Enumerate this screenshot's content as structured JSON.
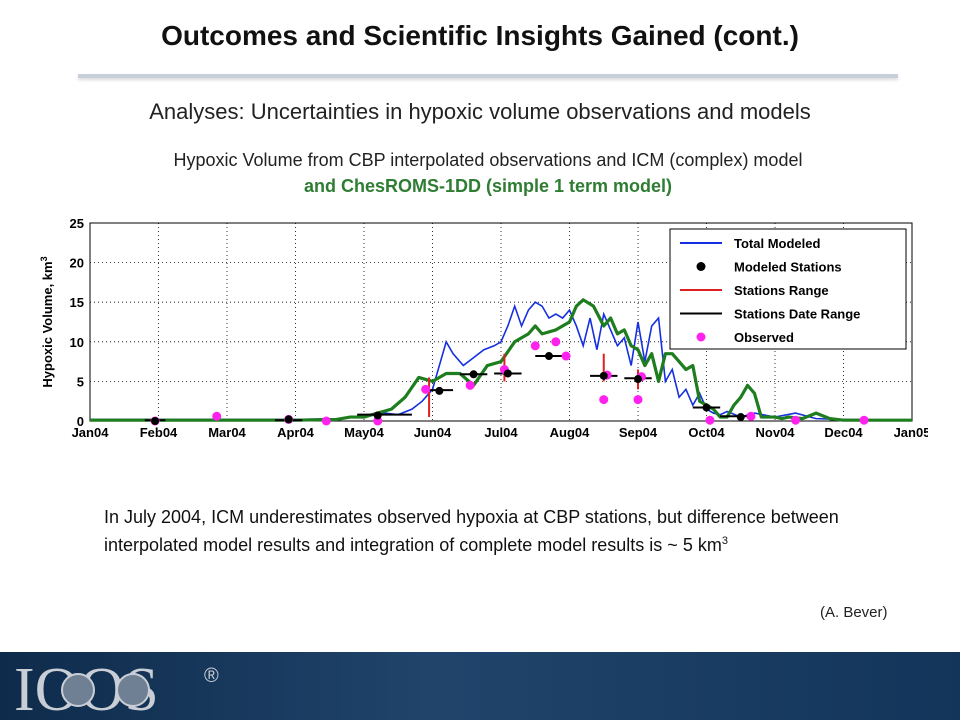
{
  "slide": {
    "title": "Outcomes and Scientific Insights Gained (cont.)",
    "subtitle": "Analyses: Uncertainties in hypoxic volume observations and models",
    "chart_caption_line1": "Hypoxic Volume from CBP interpolated observations and ICM (complex) model",
    "chart_caption_line2": "and ChesROMS-1DD (simple 1 term model)",
    "body_text": "In July 2004, ICM underestimates observed hypoxia at CBP stations, but difference between interpolated model results and integration of complete model results is ~ 5 km",
    "body_superscript": "3",
    "credit": "(A. Bever)",
    "logo_text": "IOOS",
    "logo_mark": "®"
  },
  "colors": {
    "total_modeled": "#1530e0",
    "chesroms": "#1e7d1e",
    "stations_range": "#e02020",
    "date_range": "#000000",
    "observed": "#ff22ee",
    "caption_green": "#2e7d32",
    "footer": "#13355a"
  },
  "chart_data": {
    "type": "line",
    "xlabel": "",
    "ylabel": "Hypoxic Volume, km",
    "ylabel_superscript": "3",
    "x_ticks": [
      "Jan04",
      "Feb04",
      "Mar04",
      "Apr04",
      "May04",
      "Jun04",
      "Jul04",
      "Aug04",
      "Sep04",
      "Oct04",
      "Nov04",
      "Dec04",
      "Jan05"
    ],
    "y_ticks": [
      "0",
      "5",
      "10",
      "15",
      "20",
      "25"
    ],
    "xlim": [
      0,
      12
    ],
    "ylim": [
      0,
      25
    ],
    "grid": true,
    "legend_position": "top-right",
    "legend": [
      "Total Modeled",
      "Modeled Stations",
      "Stations Range",
      "Stations Date Range",
      "Observed"
    ],
    "series": [
      {
        "name": "Total Modeled",
        "x": [
          0,
          3,
          3.6,
          3.9,
          4.1,
          4.3,
          4.5,
          4.7,
          4.85,
          5.0,
          5.1,
          5.2,
          5.3,
          5.45,
          5.6,
          5.75,
          5.9,
          6.0,
          6.1,
          6.2,
          6.3,
          6.4,
          6.5,
          6.6,
          6.7,
          6.8,
          6.9,
          7.0,
          7.1,
          7.2,
          7.3,
          7.4,
          7.5,
          7.6,
          7.7,
          7.8,
          7.9,
          8.0,
          8.1,
          8.2,
          8.3,
          8.4,
          8.5,
          8.6,
          8.7,
          8.8,
          8.9,
          9.0,
          9.1,
          9.2,
          9.3,
          9.5,
          9.7,
          10.0,
          10.3,
          10.6,
          11.0,
          12
        ],
        "y": [
          0.2,
          0.2,
          0.3,
          0.5,
          0.8,
          1.0,
          0.8,
          1.5,
          2.5,
          4.0,
          7.0,
          10.0,
          8.5,
          7.0,
          8.0,
          9.0,
          9.5,
          10.0,
          12.0,
          14.5,
          12.0,
          14.0,
          15.0,
          14.5,
          13.0,
          13.5,
          13.0,
          14.0,
          12.0,
          9.5,
          13.0,
          9.0,
          13.5,
          11.5,
          9.5,
          10.5,
          7.0,
          12.5,
          7.5,
          12.0,
          13.0,
          5.0,
          6.5,
          3.0,
          4.0,
          2.0,
          3.5,
          1.5,
          1.0,
          0.8,
          1.2,
          0.5,
          1.0,
          0.5,
          1.0,
          0.3,
          0.2,
          0.1
        ]
      },
      {
        "name": "ChesROMS-1DD",
        "x": [
          0,
          3.0,
          3.6,
          3.8,
          4.0,
          4.2,
          4.4,
          4.6,
          4.8,
          5.0,
          5.2,
          5.4,
          5.6,
          5.8,
          6.0,
          6.2,
          6.4,
          6.5,
          6.6,
          6.8,
          7.0,
          7.1,
          7.2,
          7.35,
          7.5,
          7.6,
          7.7,
          7.8,
          7.9,
          8.0,
          8.1,
          8.2,
          8.3,
          8.4,
          8.5,
          8.6,
          8.7,
          8.8,
          8.9,
          9.0,
          9.1,
          9.2,
          9.3,
          9.4,
          9.5,
          9.6,
          9.7,
          9.8,
          10.0,
          10.1,
          10.2,
          10.4,
          10.6,
          10.8,
          11.0,
          11.2,
          12
        ],
        "y": [
          0.1,
          0.1,
          0.2,
          0.5,
          0.5,
          1.0,
          1.5,
          3.0,
          5.5,
          5.0,
          6.0,
          6.0,
          4.5,
          7.0,
          7.5,
          10.0,
          11.0,
          12.0,
          11.0,
          11.5,
          12.5,
          14.5,
          15.3,
          14.5,
          12.0,
          13.0,
          11.0,
          11.5,
          9.5,
          9.0,
          7.0,
          8.5,
          5.0,
          8.5,
          8.5,
          7.5,
          6.5,
          7.0,
          2.5,
          2.0,
          1.5,
          0.5,
          0.5,
          2.0,
          3.0,
          4.5,
          3.5,
          0.5,
          0.5,
          0.3,
          0.5,
          0.3,
          1.0,
          0.3,
          0.1,
          0.1,
          0.1
        ]
      },
      {
        "name": "Modeled Stations",
        "x": [
          0.95,
          2.9,
          4.2,
          5.1,
          5.6,
          6.1,
          6.7,
          7.5,
          8.0,
          9.0,
          9.5
        ],
        "y": [
          0.0,
          0.2,
          0.7,
          3.8,
          5.9,
          6.0,
          8.2,
          5.7,
          5.3,
          1.7,
          0.5
        ]
      },
      {
        "name": "Observed",
        "x": [
          0.95,
          1.85,
          2.9,
          3.45,
          4.2,
          4.9,
          5.55,
          6.05,
          6.5,
          6.8,
          6.95,
          7.5,
          7.55,
          8.0,
          8.05,
          9.05,
          9.65,
          10.3,
          11.3
        ],
        "y": [
          0.0,
          0.6,
          0.2,
          0.0,
          0.0,
          4.0,
          4.5,
          6.5,
          9.5,
          10.0,
          8.2,
          2.7,
          5.8,
          2.7,
          5.6,
          0.1,
          0.6,
          0.1,
          0.1
        ]
      },
      {
        "name": "Stations Range",
        "x": [
          4.95,
          6.05,
          7.5,
          8.0
        ],
        "y_low": [
          0.5,
          5.0,
          5.0,
          4.0
        ],
        "y_high": [
          5.5,
          8.5,
          8.5,
          6.5
        ]
      },
      {
        "name": "Stations Date Range",
        "x_start": [
          0.8,
          2.7,
          3.9,
          4.3,
          4.9,
          5.4,
          5.9,
          6.5,
          7.3,
          7.8,
          8.8,
          9.2
        ],
        "x_end": [
          1.1,
          3.1,
          4.3,
          4.7,
          5.3,
          5.8,
          6.3,
          6.9,
          7.7,
          8.2,
          9.2,
          9.6
        ],
        "y": [
          0.1,
          0.1,
          0.8,
          0.8,
          3.9,
          5.9,
          6.0,
          8.2,
          5.7,
          5.4,
          1.7,
          0.6
        ]
      }
    ]
  }
}
